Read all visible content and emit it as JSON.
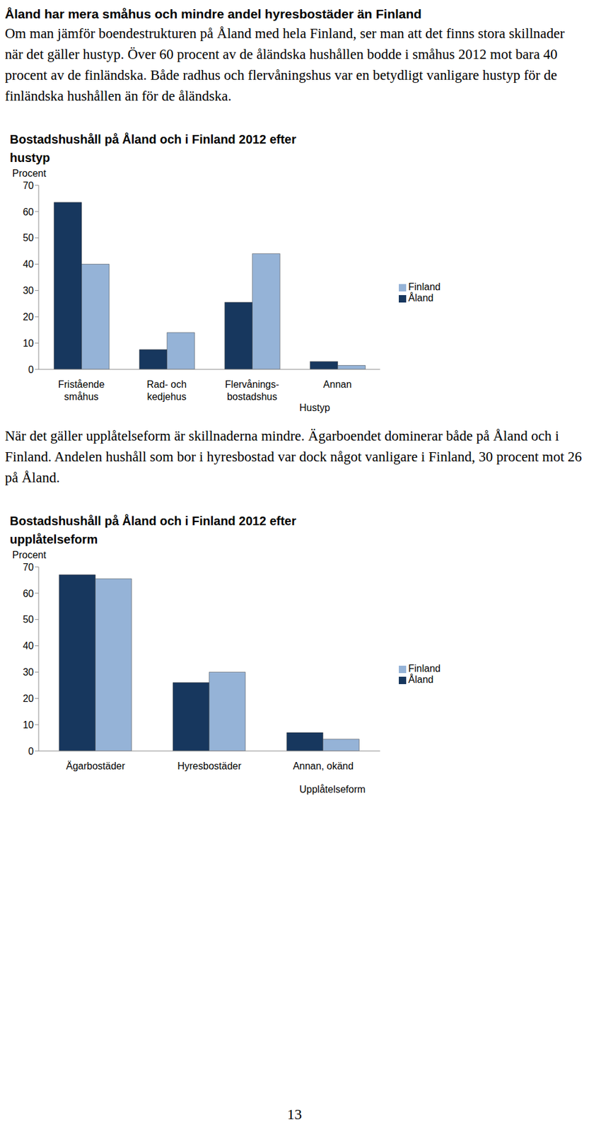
{
  "heading": "Åland har mera småhus och mindre andel hyresbostäder än Finland",
  "paragraphs": [
    "Om man jämför boendestrukturen på Åland med hela Finland, ser man att det finns stora skillnader när det gäller hustyp. Över 60 procent av de åländska hushållen bodde i småhus 2012 mot bara 40 procent av de finländska. Både radhus och flervåningshus var en betydligt vanligare hustyp för de finländska hushållen än för de åländska.",
    "När det gäller upplåtelseform är skillnaderna mindre. Ägarboendet dominerar både på Åland och i Finland. Andelen hushåll som bor i hyresbostad var dock något vanligare i Finland, 30 procent mot 26 på Åland."
  ],
  "chart_data": [
    {
      "type": "bar",
      "title": "Bostadshushåll på Åland och i Finland 2012 efter hustyp",
      "y_label": "Procent",
      "x_label": "Hustyp",
      "categories": [
        "Fristående småhus",
        "Rad- och kedjehus",
        "Flervånings-bostadshus",
        "Annan"
      ],
      "series": [
        {
          "name": "Åland",
          "color": "#17375e",
          "values": [
            63.5,
            7.5,
            25.5,
            3
          ]
        },
        {
          "name": "Finland",
          "color": "#95b3d7",
          "values": [
            40,
            14,
            44,
            1.5
          ]
        }
      ],
      "ylim": [
        0,
        70
      ],
      "yticks": [
        0,
        10,
        20,
        30,
        40,
        50,
        60,
        70
      ],
      "grid": false,
      "legend": "right"
    },
    {
      "type": "bar",
      "title": "Bostadshushåll på Åland och i Finland 2012 efter upplåtelseform",
      "y_label": "Procent",
      "x_label": "Upplåtelseform",
      "categories": [
        "Ägarbostäder",
        "Hyresbostäder",
        "Annan, okänd"
      ],
      "series": [
        {
          "name": "Åland",
          "color": "#17375e",
          "values": [
            67,
            26,
            7
          ]
        },
        {
          "name": "Finland",
          "color": "#95b3d7",
          "values": [
            65.5,
            30,
            4.5
          ]
        }
      ],
      "ylim": [
        0,
        70
      ],
      "yticks": [
        0,
        10,
        20,
        30,
        40,
        50,
        60,
        70
      ],
      "grid": false,
      "legend": "right"
    }
  ],
  "page_number": 13
}
